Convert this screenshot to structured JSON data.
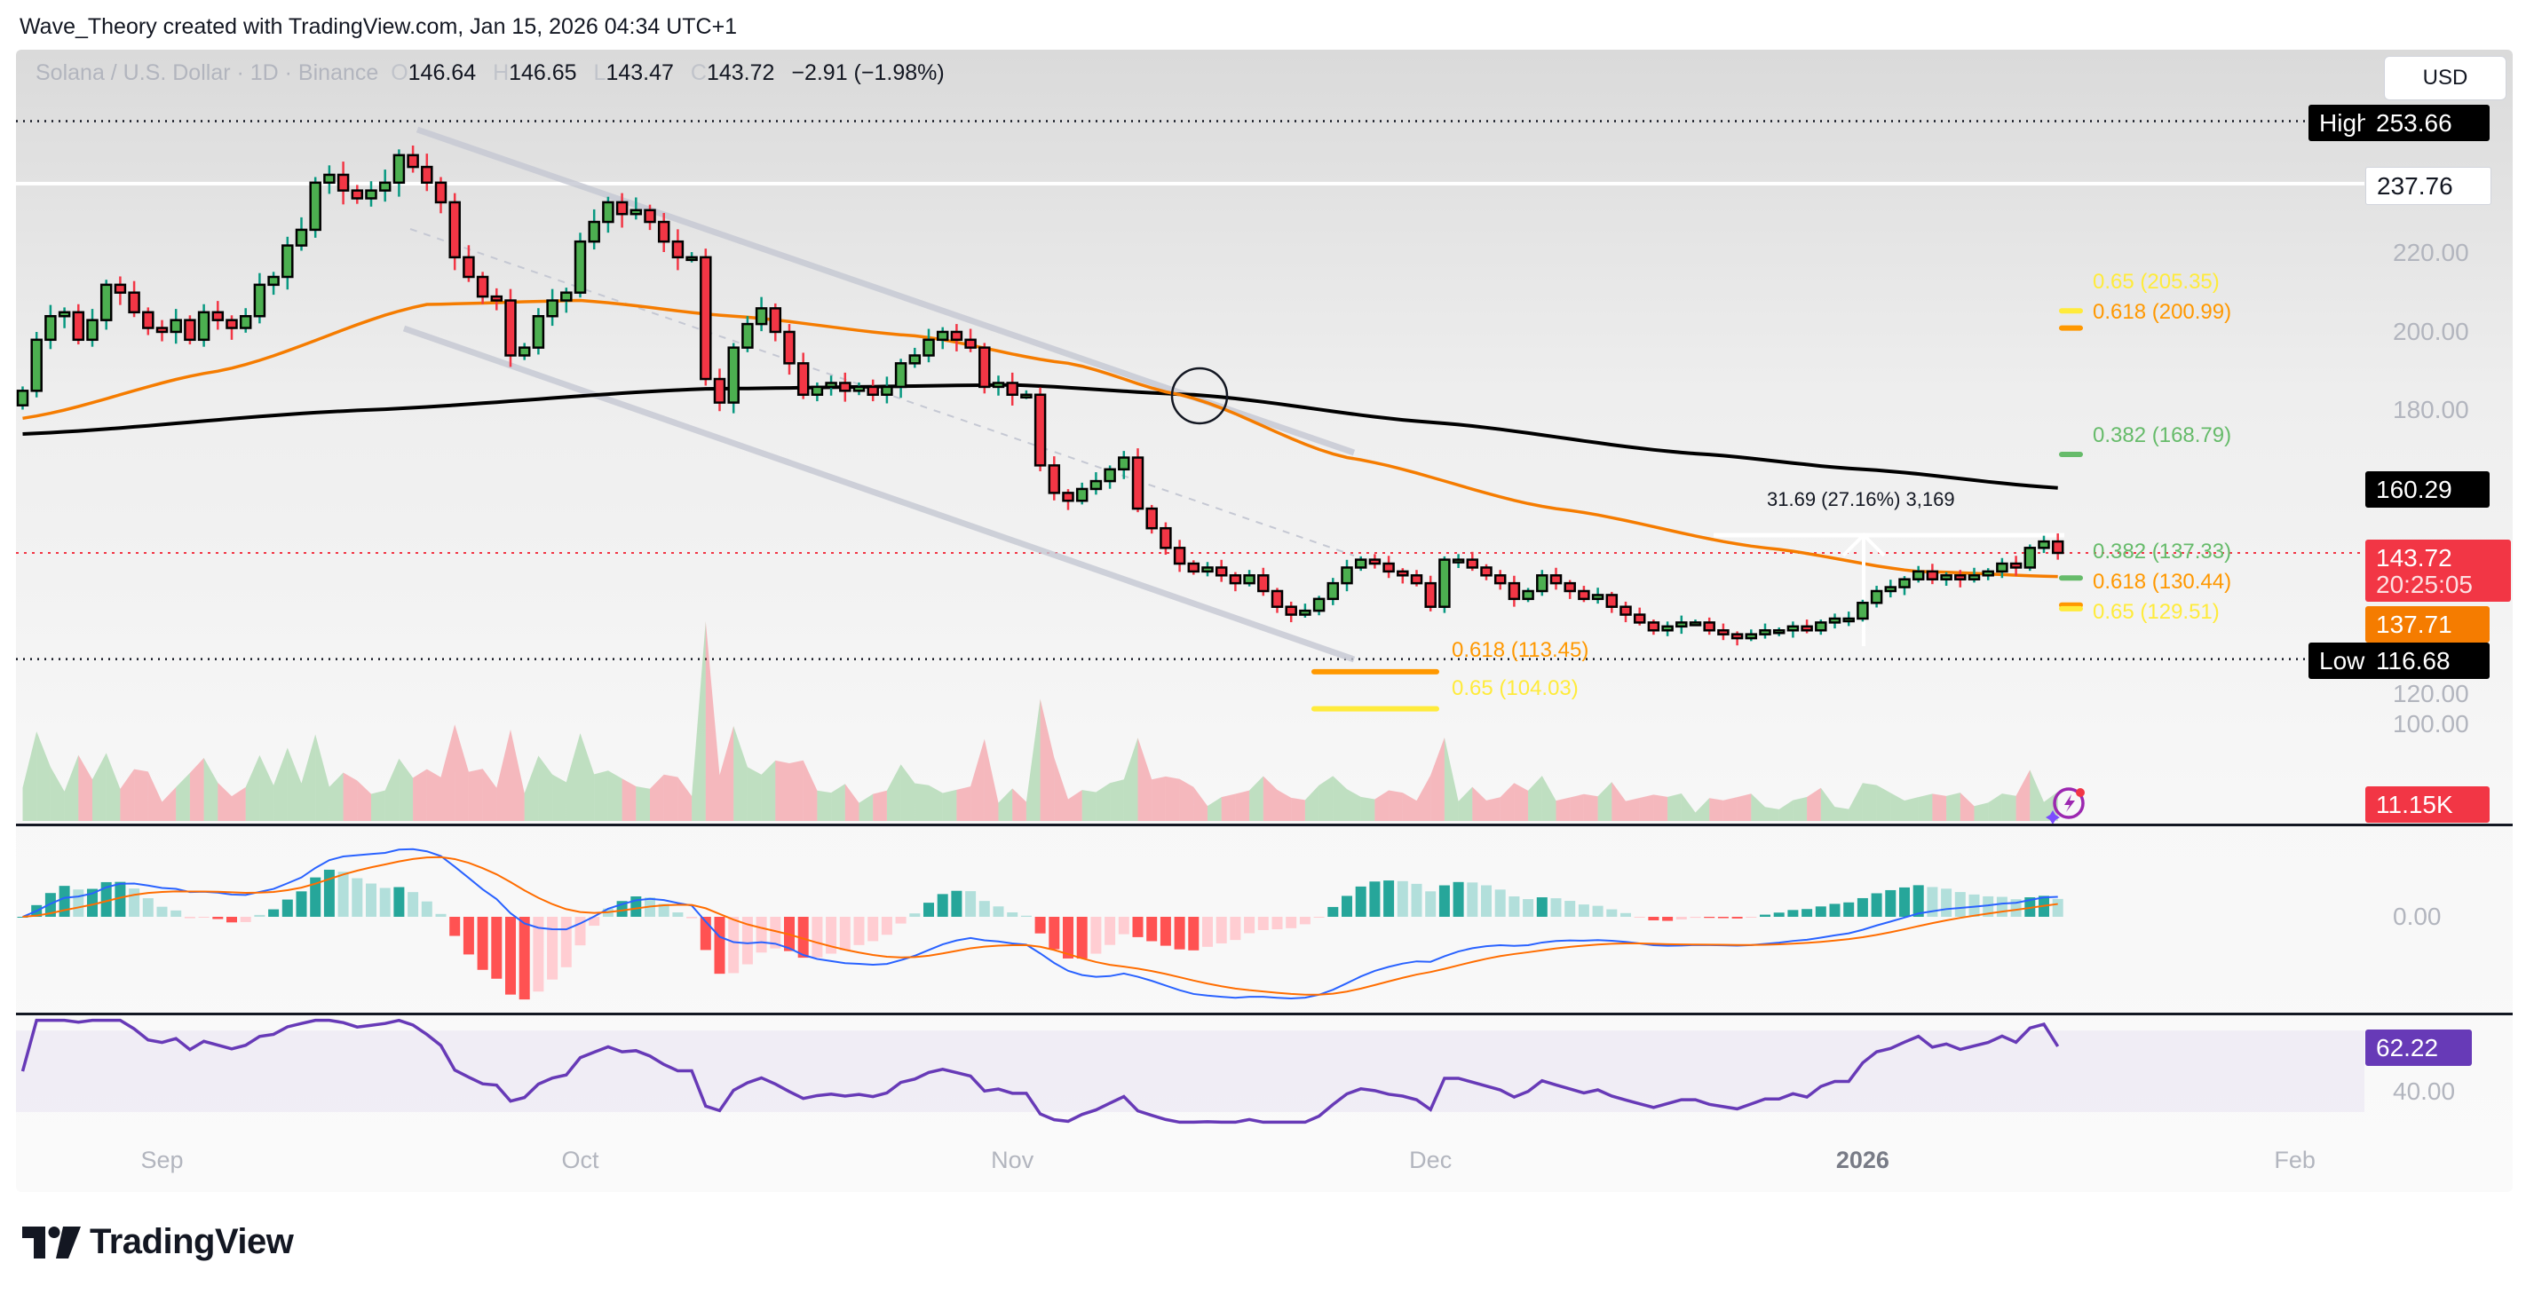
{
  "attribution": "Wave_Theory created with TradingView.com, Jan 15, 2026 04:34 UTC+1",
  "legend": {
    "symbol": "Solana / U.S. Dollar · 1D · Binance",
    "o_key": "O",
    "open": "146.64",
    "h_key": "H",
    "high": "146.65",
    "l_key": "L",
    "low": "143.47",
    "c_key": "C",
    "close": "143.72",
    "change": "−2.91 (−1.98%)"
  },
  "currency_button": "USD",
  "price_axis": {
    "ticks": [
      "220.00",
      "200.00",
      "180.00",
      "120.00",
      "100.00"
    ],
    "high_tag": {
      "label": "High",
      "value": "253.66"
    },
    "low_tag": {
      "label": "Low",
      "value": "116.68"
    },
    "level_tag": "237.76",
    "ma200_tag": "160.29",
    "last_price_tag": {
      "value": "143.72",
      "countdown": "20:25:05"
    },
    "ema_tag": "137.71",
    "volume_tag": "11.15K"
  },
  "macd_axis": {
    "zero": "0.00"
  },
  "rsi_axis": {
    "value_tag": "62.22",
    "tick": "40.00"
  },
  "measure_label": "31.69 (27.16%) 3,169",
  "fib_labels": [
    {
      "text": "0.65 (205.35)",
      "color": "#ffeb3b",
      "group": "right"
    },
    {
      "text": "0.618 (200.99)",
      "color": "#ff9800",
      "group": "right"
    },
    {
      "text": "0.382 (168.79)",
      "color": "#66bb6a",
      "group": "right"
    },
    {
      "text": "0.382 (137.33)",
      "color": "#66bb6a",
      "group": "right"
    },
    {
      "text": "0.65 (129.51)",
      "color": "#ffeb3b",
      "group": "right"
    },
    {
      "text": "0.618 (130.44)",
      "color": "#ff9800",
      "group": "right"
    },
    {
      "text": "0.618 (113.45)",
      "color": "#ff9800",
      "group": "left"
    },
    {
      "text": "0.65 (104.03)",
      "color": "#ffeb3b",
      "group": "left"
    }
  ],
  "time_axis": [
    {
      "label": "Sep",
      "date": "2025-09-01",
      "bold": false
    },
    {
      "label": "Oct",
      "date": "2025-10-01",
      "bold": false
    },
    {
      "label": "Nov",
      "date": "2025-11-01",
      "bold": false
    },
    {
      "label": "Dec",
      "date": "2025-12-01",
      "bold": false
    },
    {
      "label": "2026",
      "date": "2026-01-01",
      "bold": true
    },
    {
      "label": "Feb",
      "date": "2026-02-01",
      "bold": false
    }
  ],
  "logo": "TradingView",
  "colors": {
    "up": "#4caf50",
    "down": "#f23645",
    "ema": "#f57c00",
    "ma200": "#000000",
    "rsi": "#673ab7",
    "macd": "#2962ff",
    "signal": "#ff6d00",
    "hist_up": "#26a69a",
    "hist_up_light": "#b2dfdb",
    "hist_down": "#ff5252",
    "hist_down_light": "#ffcdd2"
  },
  "chart_data": {
    "type": "candlestick",
    "title": "Solana / U.S. Dollar · 1D · Binance",
    "start_date": "2025-08-22",
    "interval": "1D",
    "ylim": [
      95,
      258
    ],
    "closes": [
      185,
      198,
      204,
      205,
      198,
      203,
      212,
      210,
      205,
      201,
      200,
      203,
      198,
      205,
      203,
      201,
      204,
      212,
      214,
      222,
      226,
      238,
      240,
      236,
      234,
      236,
      238,
      245,
      242,
      238,
      233,
      219,
      214,
      209,
      208,
      194,
      196,
      204,
      208,
      210,
      223,
      228,
      233,
      230,
      231,
      228,
      223,
      219,
      219,
      188,
      182,
      196,
      202,
      206,
      200,
      192,
      184,
      186,
      187,
      185,
      186,
      184,
      186,
      192,
      194,
      198,
      200,
      198,
      196,
      186,
      187,
      184,
      184,
      166,
      159,
      157,
      160,
      162,
      165,
      168,
      155,
      150,
      145,
      141,
      139,
      140,
      138,
      136,
      138,
      134,
      130,
      128,
      129,
      132,
      136,
      140,
      142,
      141,
      139,
      138,
      136,
      130,
      142,
      142,
      140,
      138,
      136,
      132,
      134,
      138,
      136,
      134,
      132,
      133,
      130,
      128,
      126,
      124,
      125,
      126,
      126,
      124,
      123,
      122,
      123,
      124,
      124,
      125,
      124,
      126,
      127,
      127,
      131,
      134,
      135,
      137,
      139,
      137,
      138,
      137,
      138,
      139,
      141,
      140,
      145,
      146.63,
      143.72
    ],
    "ema": [
      {
        "date": "2025-08-22",
        "value": 178
      },
      {
        "date": "2025-09-05",
        "value": 190
      },
      {
        "date": "2025-09-20",
        "value": 207
      },
      {
        "date": "2025-10-01",
        "value": 208
      },
      {
        "date": "2025-10-12",
        "value": 204
      },
      {
        "date": "2025-10-25",
        "value": 199
      },
      {
        "date": "2025-11-05",
        "value": 192
      },
      {
        "date": "2025-11-13",
        "value": 184
      },
      {
        "date": "2025-11-25",
        "value": 168
      },
      {
        "date": "2025-12-10",
        "value": 155
      },
      {
        "date": "2025-12-25",
        "value": 145
      },
      {
        "date": "2026-01-05",
        "value": 139
      },
      {
        "date": "2026-01-15",
        "value": 137.71
      }
    ],
    "ma200": [
      {
        "date": "2025-08-22",
        "value": 174
      },
      {
        "date": "2025-09-15",
        "value": 180
      },
      {
        "date": "2025-10-10",
        "value": 185.5
      },
      {
        "date": "2025-11-01",
        "value": 186.5
      },
      {
        "date": "2025-11-14",
        "value": 184
      },
      {
        "date": "2025-12-01",
        "value": 177
      },
      {
        "date": "2025-12-20",
        "value": 169
      },
      {
        "date": "2026-01-01",
        "value": 165
      },
      {
        "date": "2026-01-15",
        "value": 160.29
      }
    ],
    "horizontal_levels": {
      "high": 253.66,
      "resistance": 237.76,
      "low": 116.68,
      "last": 143.72
    },
    "fib_levels_right": [
      {
        "ratio": 0.65,
        "price": 205.35,
        "color": "#ffeb3b"
      },
      {
        "ratio": 0.618,
        "price": 200.99,
        "color": "#ff9800"
      },
      {
        "ratio": 0.382,
        "price": 168.79,
        "color": "#66bb6a"
      },
      {
        "ratio": 0.382,
        "price": 137.33,
        "color": "#66bb6a"
      },
      {
        "ratio": 0.618,
        "price": 130.44,
        "color": "#ff9800"
      },
      {
        "ratio": 0.65,
        "price": 129.51,
        "color": "#ffeb3b"
      }
    ],
    "fib_levels_left": [
      {
        "ratio": 0.618,
        "price": 113.45,
        "color": "#ff9800"
      },
      {
        "ratio": 0.65,
        "price": 104.03,
        "color": "#ffeb3b"
      }
    ],
    "rsi_last": 62.22
  }
}
